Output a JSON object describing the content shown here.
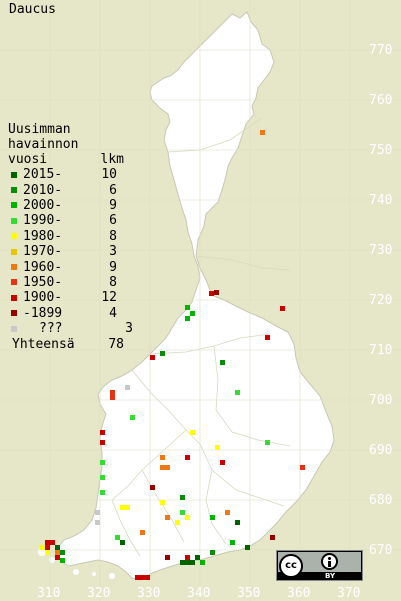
{
  "title": "Daucus",
  "legend": {
    "heading": [
      "Uusimman",
      "havainnon"
    ],
    "col_year": "vuosi",
    "col_count": "lkm",
    "rows": [
      {
        "period": "2015-",
        "count": "10",
        "color": "#006400"
      },
      {
        "period": "2010-",
        "count": "6",
        "color": "#0a8c0a"
      },
      {
        "period": "2000-",
        "count": "9",
        "color": "#00b400"
      },
      {
        "period": "1990-",
        "count": "6",
        "color": "#32dc32"
      },
      {
        "period": "1980-",
        "count": "8",
        "color": "#ffff00"
      },
      {
        "period": "1970-",
        "count": "3",
        "color": "#e6c800"
      },
      {
        "period": "1960-",
        "count": "9",
        "color": "#f07814"
      },
      {
        "period": "1950-",
        "count": "8",
        "color": "#e63214"
      },
      {
        "period": "1900-",
        "count": "12",
        "color": "#c80000"
      },
      {
        "period": "-1899",
        "count": "4",
        "color": "#960000"
      },
      {
        "period": "???",
        "count": "3",
        "color": "#c8c8c8"
      }
    ],
    "total_label": "Yhteensä",
    "total_count": "78"
  },
  "axis": {
    "northing_labels": [
      "770",
      "760",
      "750",
      "740",
      "730",
      "720",
      "710",
      "700",
      "690",
      "680",
      "670"
    ],
    "easting_labels": [
      "310",
      "320",
      "330",
      "340",
      "350",
      "360",
      "370"
    ]
  },
  "license": {
    "text": "BY",
    "icon": "cc-by-icon"
  }
}
